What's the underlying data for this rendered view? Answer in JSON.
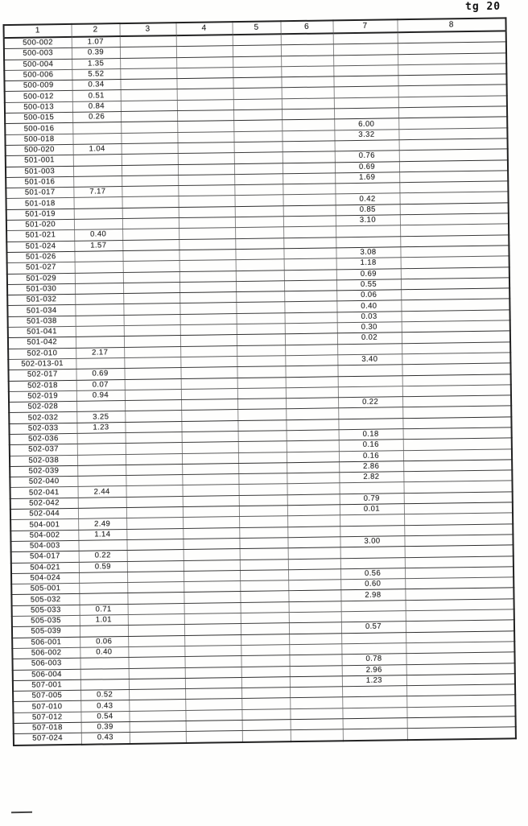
{
  "page": {
    "corner_label": "tg 20"
  },
  "table": {
    "headers": [
      "1",
      "2",
      "3",
      "4",
      "5",
      "6",
      "7",
      "8"
    ],
    "rows": [
      {
        "c1": "500-002",
        "c2": "1.07",
        "c7": ""
      },
      {
        "c1": "500-003",
        "c2": "0.39",
        "c7": ""
      },
      {
        "c1": "500-004",
        "c2": "1.35",
        "c7": ""
      },
      {
        "c1": "500-006",
        "c2": "5.52",
        "c7": ""
      },
      {
        "c1": "500-009",
        "c2": "0.34",
        "c7": ""
      },
      {
        "c1": "500-012",
        "c2": "0.51",
        "c7": ""
      },
      {
        "c1": "500-013",
        "c2": "0.84",
        "c7": ""
      },
      {
        "c1": "500-015",
        "c2": "0.26",
        "c7": ""
      },
      {
        "c1": "500-016",
        "c2": "",
        "c7": "6.00"
      },
      {
        "c1": "500-018",
        "c2": "",
        "c7": "3.32"
      },
      {
        "c1": "500-020",
        "c2": "1.04",
        "c7": ""
      },
      {
        "c1": "501-001",
        "c2": "",
        "c7": "0.76"
      },
      {
        "c1": "501-003",
        "c2": "",
        "c7": "0.69"
      },
      {
        "c1": "501-016",
        "c2": "",
        "c7": "1.69"
      },
      {
        "c1": "501-017",
        "c2": "7.17",
        "c7": ""
      },
      {
        "c1": "501-018",
        "c2": "",
        "c7": "0.42"
      },
      {
        "c1": "501-019",
        "c2": "",
        "c7": "0.85"
      },
      {
        "c1": "501-020",
        "c2": "",
        "c7": "3.10"
      },
      {
        "c1": "501-021",
        "c2": "0.40",
        "c7": ""
      },
      {
        "c1": "501-024",
        "c2": "1.57",
        "c7": ""
      },
      {
        "c1": "501-026",
        "c2": "",
        "c7": "3.08"
      },
      {
        "c1": "501-027",
        "c2": "",
        "c7": "1.18"
      },
      {
        "c1": "501-029",
        "c2": "",
        "c7": "0.69"
      },
      {
        "c1": "501-030",
        "c2": "",
        "c7": "0.55"
      },
      {
        "c1": "501-032",
        "c2": "",
        "c7": "0.06"
      },
      {
        "c1": "501-034",
        "c2": "",
        "c7": "0.40"
      },
      {
        "c1": "501-038",
        "c2": "",
        "c7": "0.03"
      },
      {
        "c1": "501-041",
        "c2": "",
        "c7": "0.30"
      },
      {
        "c1": "501-042",
        "c2": "",
        "c7": "0.02"
      },
      {
        "c1": "502-010",
        "c2": "2.17",
        "c7": ""
      },
      {
        "c1": "502-013-01",
        "c2": "",
        "c7": "3.40"
      },
      {
        "c1": "502-017",
        "c2": "0.69",
        "c7": ""
      },
      {
        "c1": "502-018",
        "c2": "0.07",
        "c7": ""
      },
      {
        "c1": "502-019",
        "c2": "0.94",
        "c7": ""
      },
      {
        "c1": "502-028",
        "c2": "",
        "c7": "0.22"
      },
      {
        "c1": "502-032",
        "c2": "3.25",
        "c7": ""
      },
      {
        "c1": "502-033",
        "c2": "1.23",
        "c7": ""
      },
      {
        "c1": "502-036",
        "c2": "",
        "c7": "0.18"
      },
      {
        "c1": "502-037",
        "c2": "",
        "c7": "0.16"
      },
      {
        "c1": "502-038",
        "c2": "",
        "c7": "0.16"
      },
      {
        "c1": "502-039",
        "c2": "",
        "c7": "2.86"
      },
      {
        "c1": "502-040",
        "c2": "",
        "c7": "2.82"
      },
      {
        "c1": "502-041",
        "c2": "2.44",
        "c7": ""
      },
      {
        "c1": "502-042",
        "c2": "",
        "c7": "0.79"
      },
      {
        "c1": "502-044",
        "c2": "",
        "c7": "0.01"
      },
      {
        "c1": "504-001",
        "c2": "2.49",
        "c7": ""
      },
      {
        "c1": "504-002",
        "c2": "1.14",
        "c7": ""
      },
      {
        "c1": "504-003",
        "c2": "",
        "c7": "3.00"
      },
      {
        "c1": "504-017",
        "c2": "0.22",
        "c7": ""
      },
      {
        "c1": "504-021",
        "c2": "0.59",
        "c7": ""
      },
      {
        "c1": "504-024",
        "c2": "",
        "c7": "0.56"
      },
      {
        "c1": "505-001",
        "c2": "",
        "c7": "0.60"
      },
      {
        "c1": "505-032",
        "c2": "",
        "c7": "2.98"
      },
      {
        "c1": "505-033",
        "c2": "0.71",
        "c7": ""
      },
      {
        "c1": "505-035",
        "c2": "1.01",
        "c7": ""
      },
      {
        "c1": "505-039",
        "c2": "",
        "c7": "0.57"
      },
      {
        "c1": "506-001",
        "c2": "0.06",
        "c7": ""
      },
      {
        "c1": "506-002",
        "c2": "0.40",
        "c7": ""
      },
      {
        "c1": "506-003",
        "c2": "",
        "c7": "0.78"
      },
      {
        "c1": "506-004",
        "c2": "",
        "c7": "2.96"
      },
      {
        "c1": "507-001",
        "c2": "",
        "c7": "1.23"
      },
      {
        "c1": "507-005",
        "c2": "0.52",
        "c7": ""
      },
      {
        "c1": "507-010",
        "c2": "0.43",
        "c7": ""
      },
      {
        "c1": "507-012",
        "c2": "0.54",
        "c7": ""
      },
      {
        "c1": "507-018",
        "c2": "0.39",
        "c7": ""
      },
      {
        "c1": "507-024",
        "c2": "0.43",
        "c7": ""
      }
    ]
  }
}
